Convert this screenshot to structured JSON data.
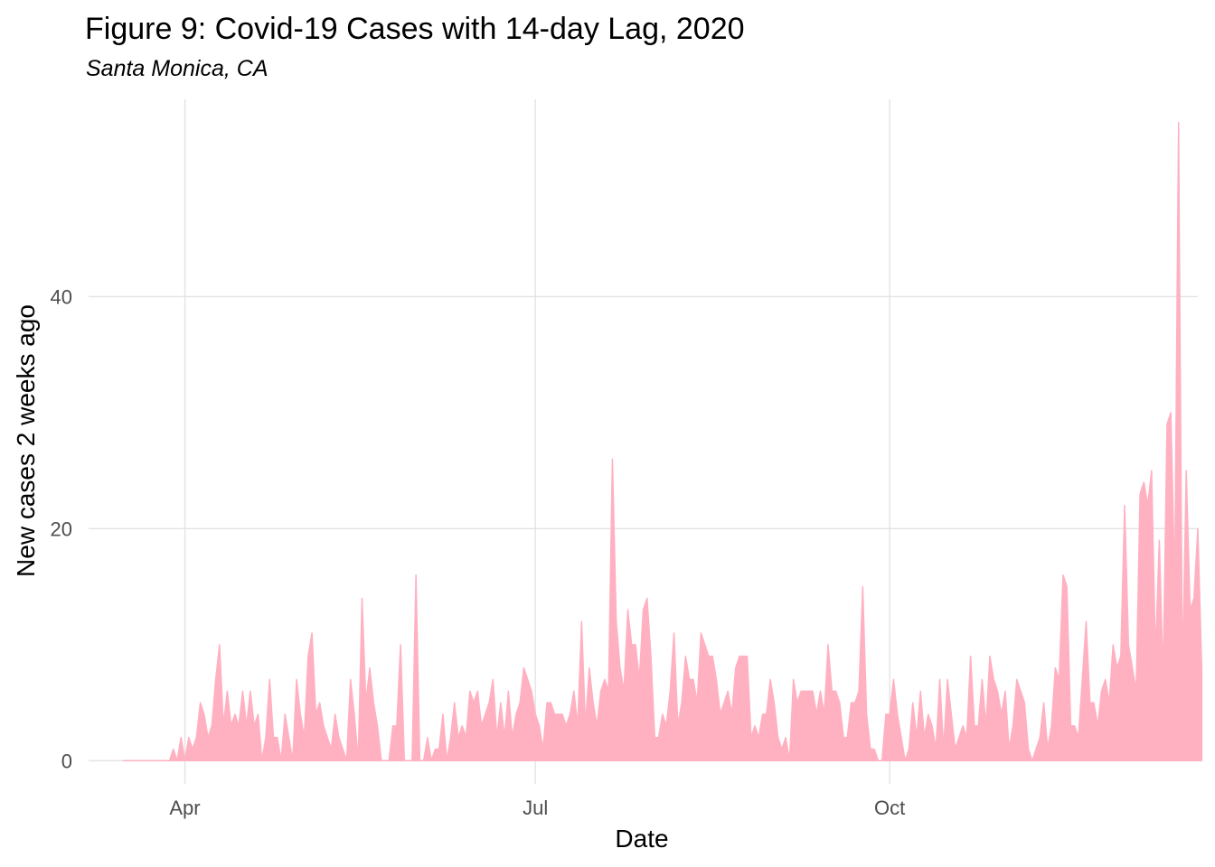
{
  "chart_data": {
    "type": "area",
    "title": "Figure 9: Covid-19 Cases with 14-day Lag, 2020",
    "subtitle": "Santa Monica, CA",
    "xlabel": "Date",
    "ylabel": "New cases 2 weeks ago",
    "x_ticks": [
      {
        "date": "2020-04-01",
        "label": "Apr"
      },
      {
        "date": "2020-07-01",
        "label": "Jul"
      },
      {
        "date": "2020-10-01",
        "label": "Oct"
      }
    ],
    "y_ticks": [
      0,
      20,
      40
    ],
    "xlim": [
      "2020-03-07",
      "2020-12-20"
    ],
    "ylim": [
      -2,
      57
    ],
    "fill_color": "#ffb0c1",
    "grid": true,
    "start_date": "2020-03-16",
    "values": [
      0,
      0,
      0,
      0,
      0,
      0,
      0,
      0,
      0,
      0,
      0,
      0,
      0,
      1,
      0,
      2,
      0,
      2,
      1,
      2,
      5,
      4,
      2,
      3,
      7,
      10,
      3,
      6,
      3,
      4,
      3,
      6,
      3,
      6,
      3,
      4,
      0,
      2,
      7,
      2,
      2,
      0,
      4,
      2,
      0,
      7,
      4,
      2,
      9,
      11,
      4,
      5,
      3,
      2,
      1,
      4,
      2,
      1,
      0,
      7,
      4,
      0,
      14,
      5,
      8,
      5,
      3,
      0,
      0,
      0,
      3,
      3,
      10,
      0,
      0,
      0,
      16,
      0,
      0,
      2,
      0,
      1,
      1,
      4,
      0,
      2,
      5,
      2,
      3,
      2,
      6,
      5,
      6,
      3,
      4,
      5,
      7,
      2,
      5,
      2,
      6,
      2,
      4,
      5,
      8,
      7,
      6,
      4,
      3,
      1,
      5,
      5,
      4,
      4,
      4,
      3,
      4,
      6,
      3,
      12,
      3,
      8,
      5,
      3,
      6,
      7,
      6,
      26,
      12,
      8,
      6,
      13,
      10,
      10,
      7,
      13,
      14,
      9,
      2,
      2,
      4,
      3,
      6,
      11,
      3,
      5,
      9,
      7,
      7,
      5,
      11,
      10,
      9,
      9,
      7,
      4,
      5,
      6,
      4,
      8,
      9,
      9,
      9,
      2,
      3,
      2,
      4,
      4,
      7,
      5,
      2,
      1,
      2,
      0,
      7,
      5,
      6,
      6,
      6,
      6,
      4,
      6,
      4,
      10,
      6,
      6,
      5,
      2,
      2,
      5,
      5,
      6,
      15,
      4,
      1,
      1,
      0,
      0,
      4,
      4,
      7,
      4,
      2,
      0,
      1,
      5,
      2,
      6,
      2,
      4,
      3,
      1,
      7,
      1,
      7,
      4,
      1,
      2,
      3,
      2,
      9,
      3,
      3,
      7,
      3,
      9,
      7,
      6,
      4,
      6,
      1,
      3,
      7,
      6,
      5,
      1,
      0,
      1,
      2,
      5,
      1,
      3,
      8,
      7,
      16,
      15,
      3,
      3,
      2,
      7,
      12,
      5,
      5,
      3,
      6,
      7,
      5,
      10,
      8,
      9,
      22,
      10,
      8,
      6,
      23,
      24,
      22,
      25,
      9,
      19,
      7,
      29,
      30,
      15,
      55,
      7,
      25,
      13,
      14,
      20,
      8
    ]
  }
}
